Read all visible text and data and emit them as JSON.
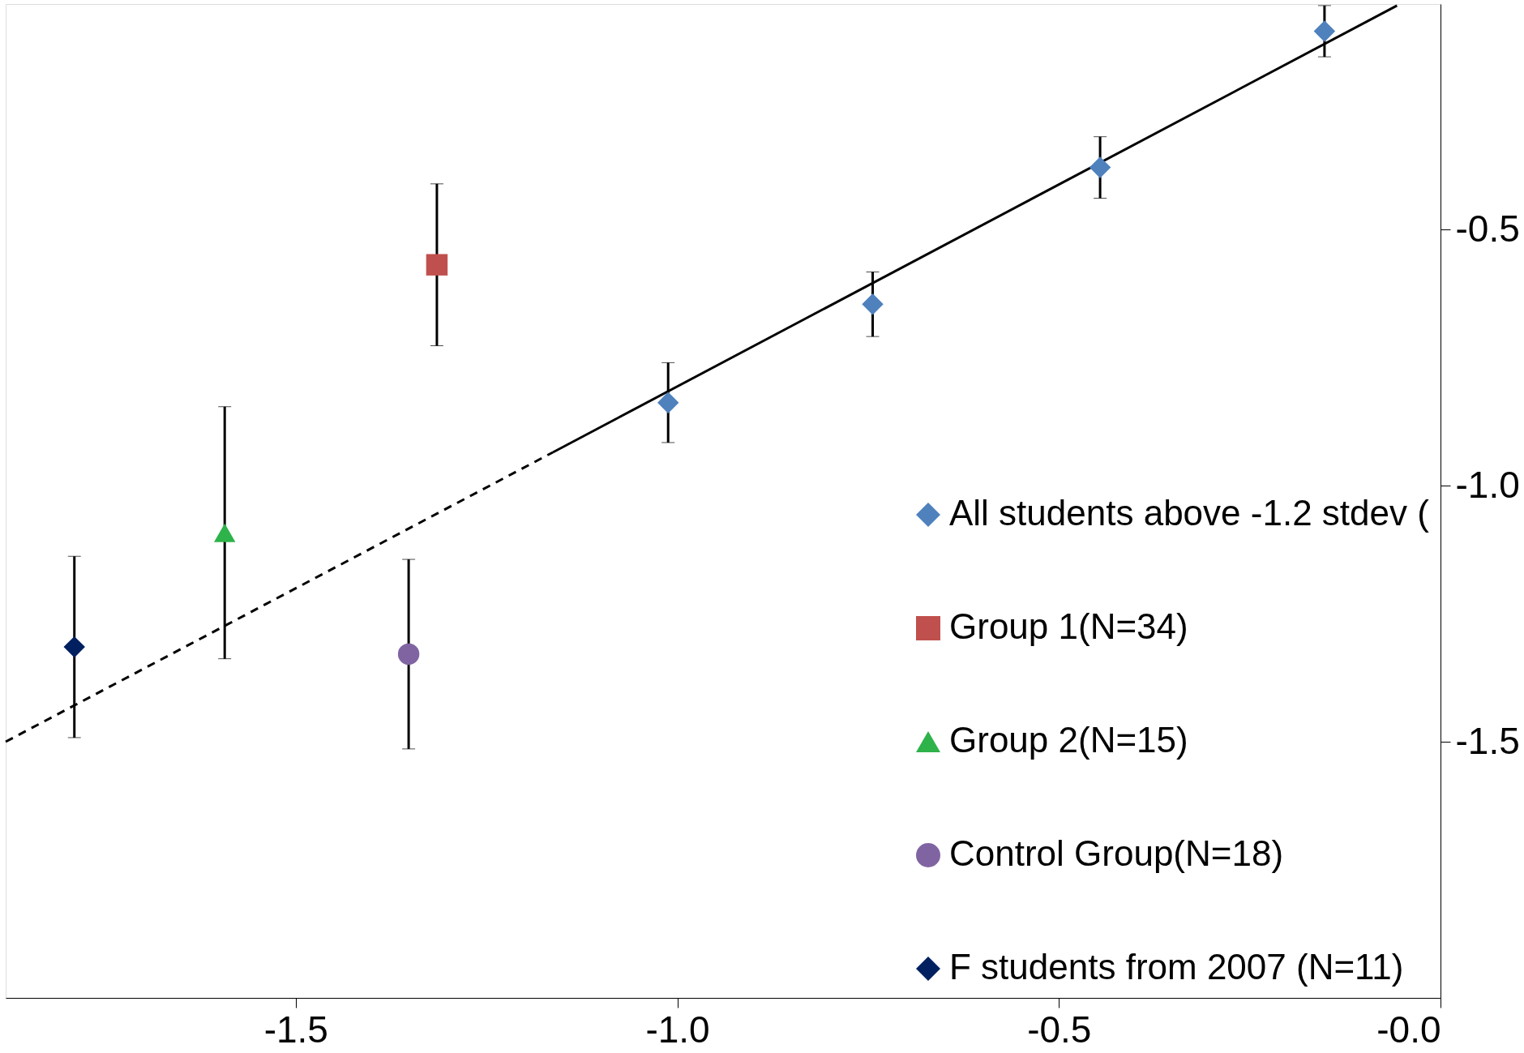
{
  "chart_data": {
    "type": "scatter",
    "xlim": [
      -1.88,
      0.0
    ],
    "ylim": [
      -2.0,
      -0.06
    ],
    "xticks": [
      -1.5,
      {
        "value": -1.0,
        "label": "-1.0"
      },
      -0.5,
      {
        "value": 0.0,
        "label": "-0.0"
      }
    ],
    "yticks": [
      -1.5,
      {
        "value": -1.0,
        "label": "-1.0"
      },
      -0.5
    ],
    "grid": false,
    "legend": "bottom right",
    "series": [
      {
        "name": "All students above -1.2 stdev (",
        "color": "#4f81bd",
        "marker": "diamond",
        "x": [
          -1.012,
          -0.744,
          -0.446,
          -0.152
        ],
        "values": [
          -0.838,
          -0.646,
          -0.379,
          -0.113
        ],
        "errors": [
          0.078,
          0.063,
          0.06,
          0.05
        ]
      },
      {
        "name": "Group 1(N=34)",
        "color": "#c0504d",
        "marker": "square",
        "x": [
          -1.315
        ],
        "values": [
          -0.569
        ],
        "errors": [
          0.158
        ]
      },
      {
        "name": "Group 2(N=15)",
        "color": "#2eb24a",
        "marker": "triangle",
        "x": [
          -1.593
        ],
        "values": [
          -1.092
        ],
        "errors": [
          0.246
        ]
      },
      {
        "name": "Control Group(N=18)",
        "color": "#8064a2",
        "marker": "circle",
        "x": [
          -1.352
        ],
        "values": [
          -1.329
        ],
        "errors": [
          0.185
        ]
      },
      {
        "name": "F students from 2007 (N=11)",
        "color": "#002060",
        "marker": "diamond",
        "x": [
          -1.79
        ],
        "values": [
          -1.315
        ],
        "errors": [
          0.177
        ]
      },
      {
        "type": "line",
        "color": "#000000",
        "line_style": "solid",
        "x": [
          -1.163,
          -0.057
        ],
        "values": [
          -0.935,
          -0.063
        ]
      },
      {
        "type": "line",
        "color": "#000000",
        "line_style": "dashed",
        "x": [
          -1.88,
          -1.163
        ],
        "values": [
          -1.5,
          -0.935
        ]
      }
    ]
  }
}
